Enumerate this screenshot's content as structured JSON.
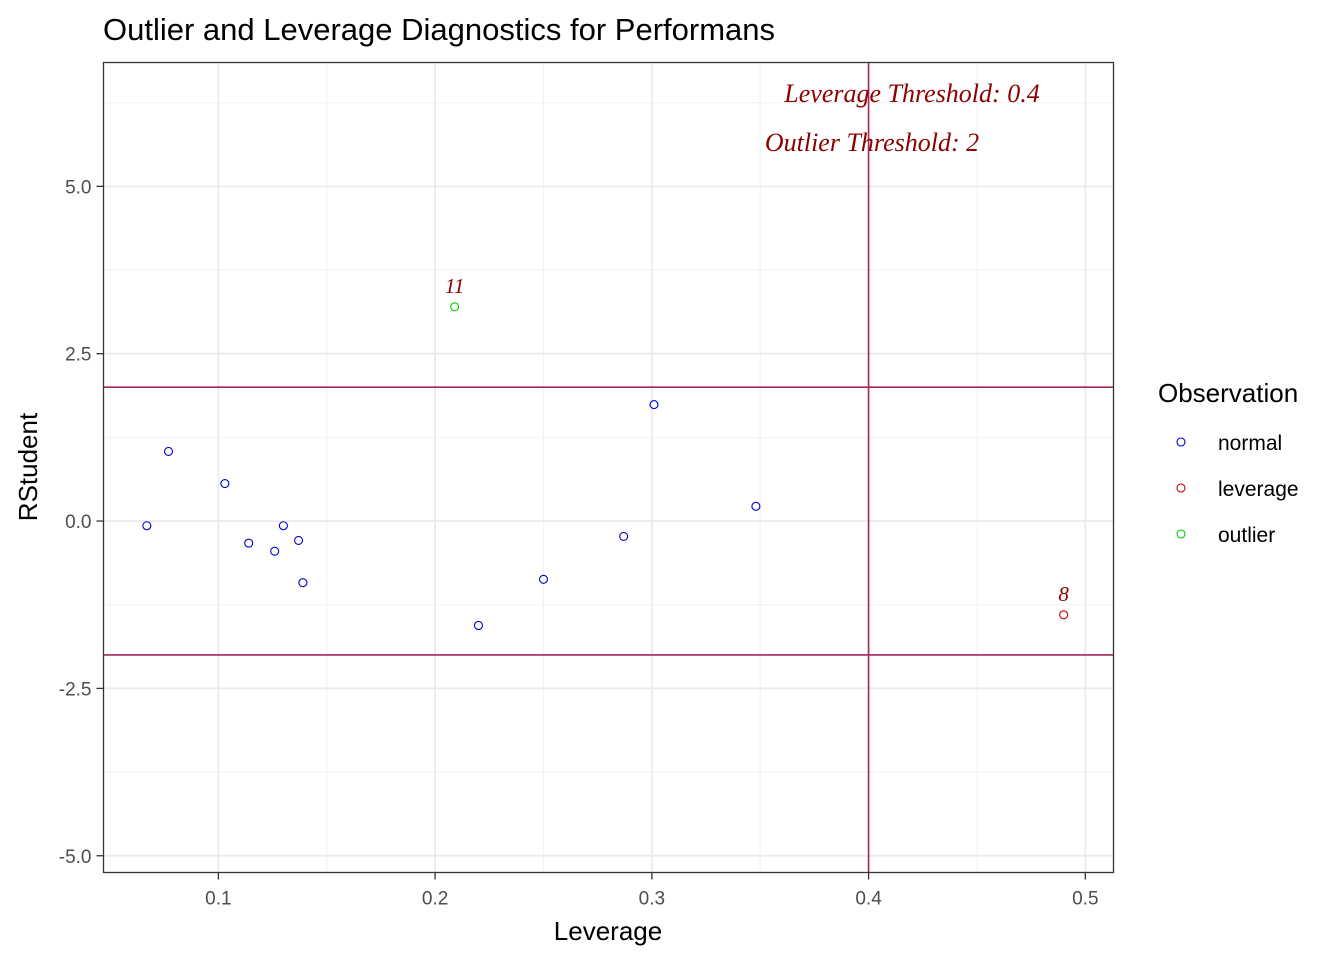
{
  "chart_data": {
    "type": "scatter",
    "title": "Outlier and Leverage Diagnostics for Performans",
    "xlabel": "Leverage",
    "ylabel": "RStudent",
    "xlim": [
      0.047,
      0.513
    ],
    "ylim": [
      -5.25,
      6.85
    ],
    "x_ticks": [
      0.1,
      0.2,
      0.3,
      0.4,
      0.5
    ],
    "x_tick_labels": [
      "0.1",
      "0.2",
      "0.3",
      "0.4",
      "0.5"
    ],
    "y_ticks": [
      -5.0,
      -2.5,
      0.0,
      2.5,
      5.0
    ],
    "y_tick_labels": [
      "-5.0",
      "-2.5",
      "0.0",
      "2.5",
      "5.0"
    ],
    "grid": true,
    "legend": {
      "title": "Observation",
      "placement": "right",
      "entries": [
        {
          "label": "normal",
          "color": "#0000cc"
        },
        {
          "label": "leverage",
          "color": "#cc0000"
        },
        {
          "label": "outlier",
          "color": "#00cc00"
        }
      ]
    },
    "thresholds": {
      "leverage": 0.4,
      "rstudent_upper": 2,
      "rstudent_lower": -2,
      "line_color": "#a8255f"
    },
    "annotations": [
      {
        "text": "Leverage Threshold: 0.4",
        "color": "#8b0000"
      },
      {
        "text": "Outlier Threshold: 2",
        "color": "#8b0000"
      }
    ],
    "series": [
      {
        "name": "normal",
        "color": "#0000cc",
        "points": [
          {
            "x": 0.067,
            "y": -0.07
          },
          {
            "x": 0.077,
            "y": 1.04
          },
          {
            "x": 0.103,
            "y": 0.56
          },
          {
            "x": 0.114,
            "y": -0.33
          },
          {
            "x": 0.126,
            "y": -0.45
          },
          {
            "x": 0.13,
            "y": -0.07
          },
          {
            "x": 0.137,
            "y": -0.29
          },
          {
            "x": 0.139,
            "y": -0.92
          },
          {
            "x": 0.22,
            "y": -1.56
          },
          {
            "x": 0.25,
            "y": -0.87
          },
          {
            "x": 0.287,
            "y": -0.23
          },
          {
            "x": 0.301,
            "y": 1.74
          },
          {
            "x": 0.348,
            "y": 0.22
          }
        ]
      },
      {
        "name": "leverage",
        "color": "#cc0000",
        "points": [
          {
            "x": 0.49,
            "y": -1.4,
            "label": "8"
          }
        ]
      },
      {
        "name": "outlier",
        "color": "#00cc00",
        "points": [
          {
            "x": 0.209,
            "y": 3.2,
            "label": "11"
          }
        ]
      }
    ],
    "point_label_color": "#8b0000"
  }
}
